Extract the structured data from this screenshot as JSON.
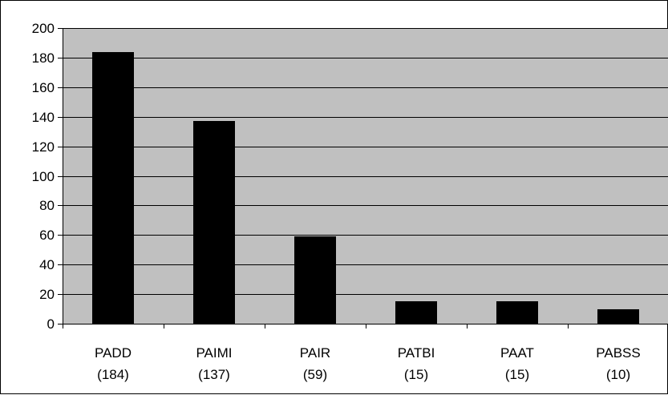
{
  "chart_data": {
    "type": "bar",
    "categories": [
      {
        "name": "PADD",
        "count_label": "(184)"
      },
      {
        "name": "PAIMI",
        "count_label": "(137)"
      },
      {
        "name": "PAIR",
        "count_label": "(59)"
      },
      {
        "name": "PATBI",
        "count_label": "(15)"
      },
      {
        "name": "PAAT",
        "count_label": "(15)"
      },
      {
        "name": "PABSS",
        "count_label": "(10)"
      }
    ],
    "values": [
      184,
      137,
      59,
      15,
      15,
      10
    ],
    "ylim": [
      0,
      200
    ],
    "yticks": [
      0,
      20,
      40,
      60,
      80,
      100,
      120,
      140,
      160,
      180,
      200
    ],
    "grid": true,
    "legend": "none",
    "colors": {
      "bar": "#000000",
      "plot_background": "#c0c0c0",
      "gridline": "#000000",
      "page_background": "#ffffff"
    }
  }
}
